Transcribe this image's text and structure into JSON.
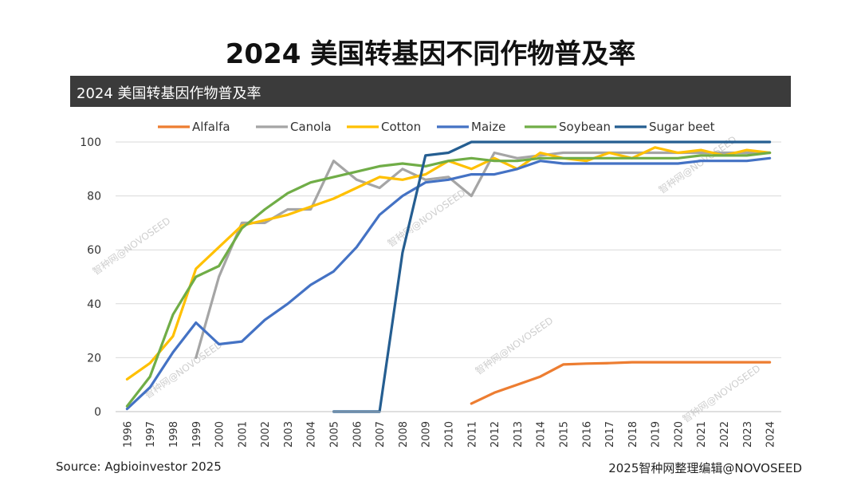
{
  "page": {
    "title": "2024 美国转基因不同作物普及率",
    "banner": "2024 美国转基因作物普及率",
    "source": "Source: Agbioinvestor 2025",
    "credit": "2025智种网整理编辑@NOVOSEED",
    "watermark": "智种网@NOVOSEED"
  },
  "chart_data": {
    "type": "line",
    "title": "2024 美国转基因作物普及率",
    "xlabel": "",
    "ylabel": "",
    "x": [
      "1996",
      "1997",
      "1998",
      "1999",
      "2000",
      "2001",
      "2002",
      "2003",
      "2004",
      "2005",
      "2006",
      "2007",
      "2008",
      "2009",
      "2010",
      "2011",
      "2012",
      "2013",
      "2014",
      "2015",
      "2016",
      "2017",
      "2018",
      "2019",
      "2020",
      "2021",
      "2022",
      "2023",
      "2024"
    ],
    "ylim": [
      0,
      100
    ],
    "yticks": [
      0,
      20,
      40,
      60,
      80,
      100
    ],
    "grid": "horizontal",
    "legend_position": "top",
    "series": [
      {
        "name": "Alfalfa",
        "color": "#ED7D31",
        "values": [
          null,
          null,
          null,
          null,
          null,
          null,
          null,
          null,
          null,
          null,
          null,
          null,
          null,
          null,
          null,
          3,
          7,
          10,
          13,
          17.5,
          17.8,
          18,
          18.3,
          18.3,
          18.3,
          18.3,
          18.3,
          18.3,
          18.3
        ]
      },
      {
        "name": "Canola",
        "color": "#A5A5A5",
        "values": [
          null,
          null,
          null,
          20,
          50,
          70,
          70,
          75,
          75,
          93,
          86,
          83,
          90,
          86,
          87,
          80,
          96,
          94,
          95,
          96,
          96,
          96,
          96,
          96,
          96,
          96,
          96,
          96,
          96
        ]
      },
      {
        "name": "Cotton",
        "color": "#FFC000",
        "values": [
          12,
          18,
          28,
          53,
          61,
          69,
          71,
          73,
          76,
          79,
          83,
          87,
          86,
          88,
          93,
          90,
          94,
          90,
          96,
          94,
          93,
          96,
          94,
          98,
          96,
          97,
          95,
          97,
          96
        ]
      },
      {
        "name": "Maize",
        "color": "#4472C4",
        "values": [
          1,
          9,
          22,
          33,
          25,
          26,
          34,
          40,
          47,
          52,
          61,
          73,
          80,
          85,
          86,
          88,
          88,
          90,
          93,
          92,
          92,
          92,
          92,
          92,
          92,
          93,
          93,
          93,
          94
        ]
      },
      {
        "name": "Soybean",
        "color": "#70AD47",
        "values": [
          2,
          13,
          36,
          50,
          54,
          68,
          75,
          81,
          85,
          87,
          89,
          91,
          92,
          91,
          93,
          94,
          93,
          93,
          94,
          94,
          94,
          94,
          94,
          94,
          94,
          95,
          95,
          95,
          96
        ]
      },
      {
        "name": "Sugar beet",
        "color": "#255E91",
        "values": [
          null,
          null,
          null,
          null,
          null,
          null,
          null,
          null,
          null,
          0,
          0,
          0,
          59,
          95,
          96,
          100,
          100,
          100,
          100,
          100,
          100,
          100,
          100,
          100,
          100,
          100,
          100,
          100,
          100
        ]
      }
    ]
  }
}
